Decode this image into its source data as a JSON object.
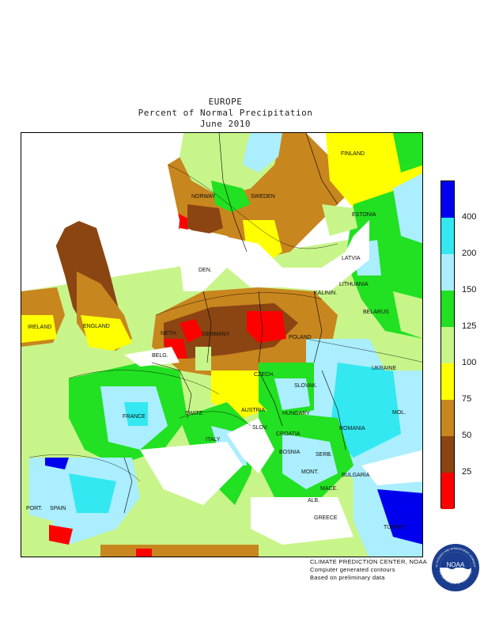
{
  "title": {
    "region": "EUROPE",
    "metric": "Percent of Normal Precipitation",
    "period": "June 2010"
  },
  "colorbar": {
    "segments": [
      {
        "from": 0,
        "to": 25,
        "color": "#ff0000"
      },
      {
        "from": 25,
        "to": 50,
        "color": "#8b4513"
      },
      {
        "from": 50,
        "to": 75,
        "color": "#c8861e"
      },
      {
        "from": 75,
        "to": 100,
        "color": "#ffff00"
      },
      {
        "from": 100,
        "to": 125,
        "color": "#c8f58a"
      },
      {
        "from": 125,
        "to": 150,
        "color": "#22e022"
      },
      {
        "from": 150,
        "to": 200,
        "color": "#aaeeff"
      },
      {
        "from": 200,
        "to": 400,
        "color": "#33e8f0"
      },
      {
        "from": 400,
        "to": null,
        "color": "#0000ee"
      }
    ],
    "tick_labels": [
      "25",
      "50",
      "75",
      "100",
      "125",
      "150",
      "200",
      "400"
    ]
  },
  "countries": [
    {
      "name": "FINLAND"
    },
    {
      "name": "NORWAY"
    },
    {
      "name": "SWEDEN"
    },
    {
      "name": "ESTONIA"
    },
    {
      "name": "LATVIA"
    },
    {
      "name": "LITHUANIA"
    },
    {
      "name": "KALININ."
    },
    {
      "name": "DEN."
    },
    {
      "name": "IRELAND"
    },
    {
      "name": "ENGLAND"
    },
    {
      "name": "GERMANY"
    },
    {
      "name": "POLAND"
    },
    {
      "name": "BELARUS"
    },
    {
      "name": "NETH."
    },
    {
      "name": "BELG."
    },
    {
      "name": "CZECH."
    },
    {
      "name": "SLOVAK."
    },
    {
      "name": "UKRAINE"
    },
    {
      "name": "FRANCE"
    },
    {
      "name": "SWITZ."
    },
    {
      "name": "AUSTRIA"
    },
    {
      "name": "HUNGARY"
    },
    {
      "name": "MOL."
    },
    {
      "name": "SLOV."
    },
    {
      "name": "CROATIA"
    },
    {
      "name": "ROMANIA"
    },
    {
      "name": "ITALY"
    },
    {
      "name": "BOSNIA"
    },
    {
      "name": "SERB."
    },
    {
      "name": "MONT."
    },
    {
      "name": "BULGARIA"
    },
    {
      "name": "MACE."
    },
    {
      "name": "ALB."
    },
    {
      "name": "PORT."
    },
    {
      "name": "SPAIN"
    },
    {
      "name": "GREECE"
    },
    {
      "name": "TURKEY"
    }
  ],
  "credits": [
    "CLIMATE PREDICTION CENTER, NOAA",
    "Computer generated contours",
    "Based on preliminary data"
  ],
  "logo": {
    "text": "NOAA",
    "ring_top": "NATIONAL OCEANIC AND ATMOSPHERIC ADMINISTRATION",
    "ring_bottom": "U.S. DEPARTMENT OF COMMERCE"
  },
  "colors": {
    "sea": "#ffffff",
    "border": "#000000",
    "noaa_blue": "#1a3d8f"
  }
}
